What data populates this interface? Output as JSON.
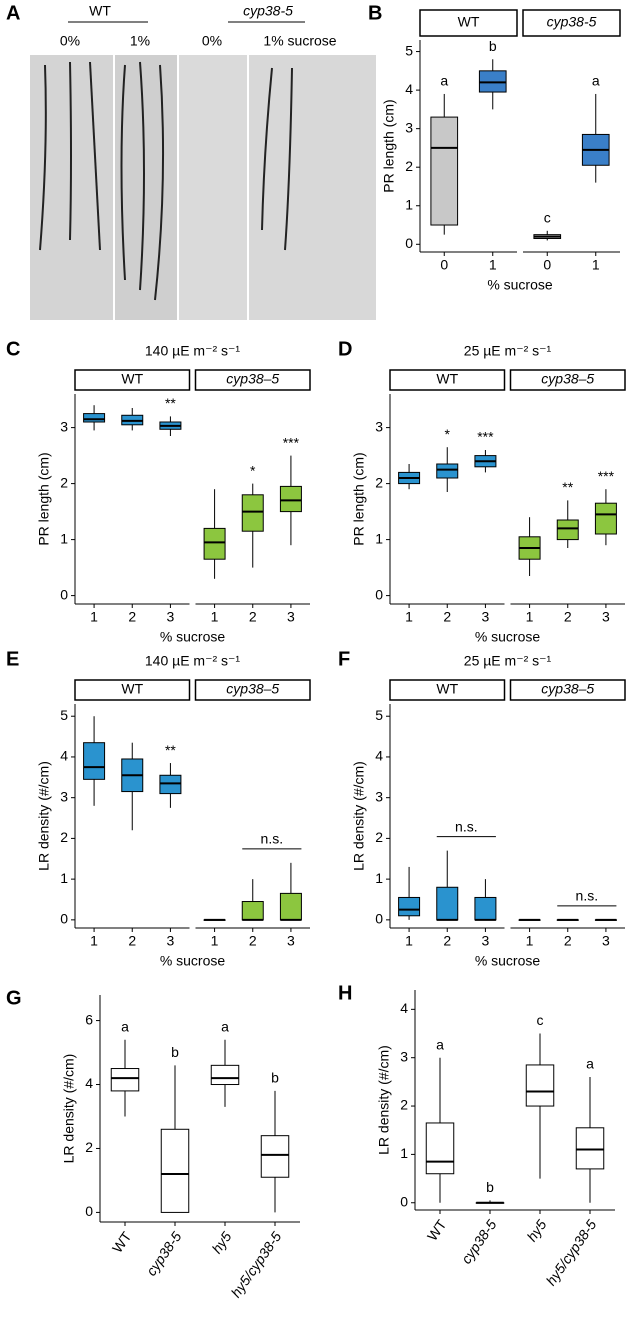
{
  "image_panel": {
    "panel": "A",
    "labels": [
      "WT",
      "0%",
      "1%",
      "cyp38-5",
      "0%",
      "1% sucrose"
    ]
  },
  "chart_data": [
    {
      "type": "box",
      "panel": "B",
      "ylabel": "PR length (cm)",
      "xlabel": "% sucrose",
      "ylim": [
        -0.2,
        5.3
      ],
      "yticks": [
        0,
        1,
        2,
        3,
        4,
        5
      ],
      "label_color": "#000000",
      "facets": [
        {
          "name": "WT",
          "italic": false,
          "categories": [
            "0",
            "1"
          ],
          "colors": [
            "#c8c8c8",
            "#3a7fc8"
          ],
          "labels": [
            "a",
            "b"
          ],
          "boxes": [
            {
              "min": 0.25,
              "q1": 0.5,
              "median": 2.5,
              "q3": 3.3,
              "max": 3.9
            },
            {
              "min": 3.5,
              "q1": 3.95,
              "median": 4.2,
              "q3": 4.5,
              "max": 4.8
            }
          ]
        },
        {
          "name": "cyp38-5",
          "italic": true,
          "categories": [
            "0",
            "1"
          ],
          "colors": [
            "#c8c8c8",
            "#3a7fc8"
          ],
          "labels": [
            "c",
            "a"
          ],
          "boxes": [
            {
              "min": 0.1,
              "q1": 0.15,
              "median": 0.2,
              "q3": 0.25,
              "max": 0.35
            },
            {
              "min": 1.6,
              "q1": 2.05,
              "median": 2.45,
              "q3": 2.85,
              "max": 3.9
            }
          ]
        }
      ]
    },
    {
      "type": "box",
      "panel": "C",
      "title": "140 µE m⁻² s⁻¹",
      "ylabel": "PR length (cm)",
      "xlabel": "% sucrose",
      "ylim": [
        -0.15,
        3.6
      ],
      "yticks": [
        0,
        1,
        2,
        3
      ],
      "label_color": "#e8262a",
      "facets": [
        {
          "name": "WT",
          "italic": false,
          "categories": [
            "1",
            "2",
            "3"
          ],
          "colors": [
            "#2a93cf",
            "#2a93cf",
            "#2a93cf"
          ],
          "labels": [
            null,
            null,
            "**"
          ],
          "boxes": [
            {
              "min": 2.95,
              "q1": 3.1,
              "median": 3.15,
              "q3": 3.25,
              "max": 3.4
            },
            {
              "min": 2.95,
              "q1": 3.05,
              "median": 3.12,
              "q3": 3.22,
              "max": 3.35
            },
            {
              "min": 2.85,
              "q1": 2.97,
              "median": 3.03,
              "q3": 3.1,
              "max": 3.2
            }
          ]
        },
        {
          "name": "cyp38–5",
          "italic": true,
          "categories": [
            "1",
            "2",
            "3"
          ],
          "colors": [
            "#8cc63f",
            "#8cc63f",
            "#8cc63f"
          ],
          "labels": [
            null,
            "*",
            "***"
          ],
          "boxes": [
            {
              "min": 0.3,
              "q1": 0.65,
              "median": 0.95,
              "q3": 1.2,
              "max": 1.9
            },
            {
              "min": 0.5,
              "q1": 1.15,
              "median": 1.5,
              "q3": 1.8,
              "max": 2.0
            },
            {
              "min": 0.9,
              "q1": 1.5,
              "median": 1.7,
              "q3": 1.95,
              "max": 2.5
            }
          ]
        }
      ]
    },
    {
      "type": "box",
      "panel": "D",
      "title": "25 µE m⁻² s⁻¹",
      "ylabel": "PR length (cm)",
      "xlabel": "% sucrose",
      "ylim": [
        -0.15,
        3.6
      ],
      "yticks": [
        0,
        1,
        2,
        3
      ],
      "label_color": "#e8262a",
      "facets": [
        {
          "name": "WT",
          "italic": false,
          "categories": [
            "1",
            "2",
            "3"
          ],
          "colors": [
            "#2a93cf",
            "#2a93cf",
            "#2a93cf"
          ],
          "labels": [
            null,
            "*",
            "***"
          ],
          "boxes": [
            {
              "min": 1.9,
              "q1": 2.0,
              "median": 2.1,
              "q3": 2.2,
              "max": 2.35
            },
            {
              "min": 1.85,
              "q1": 2.1,
              "median": 2.25,
              "q3": 2.35,
              "max": 2.65
            },
            {
              "min": 2.2,
              "q1": 2.3,
              "median": 2.4,
              "q3": 2.5,
              "max": 2.6
            }
          ]
        },
        {
          "name": "cyp38–5",
          "italic": true,
          "categories": [
            "1",
            "2",
            "3"
          ],
          "colors": [
            "#8cc63f",
            "#8cc63f",
            "#8cc63f"
          ],
          "labels": [
            null,
            "**",
            "***"
          ],
          "boxes": [
            {
              "min": 0.35,
              "q1": 0.65,
              "median": 0.85,
              "q3": 1.05,
              "max": 1.4
            },
            {
              "min": 0.85,
              "q1": 1.0,
              "median": 1.2,
              "q3": 1.35,
              "max": 1.7
            },
            {
              "min": 0.9,
              "q1": 1.1,
              "median": 1.45,
              "q3": 1.65,
              "max": 1.9
            }
          ]
        }
      ]
    },
    {
      "type": "box",
      "panel": "E",
      "title": "140 µE m⁻² s⁻¹",
      "ylabel": "LR density (#/cm)",
      "xlabel": "% sucrose",
      "ylim": [
        -0.2,
        5.3
      ],
      "yticks": [
        0,
        1,
        2,
        3,
        4,
        5
      ],
      "label_color": "#e8262a",
      "facets": [
        {
          "name": "WT",
          "italic": false,
          "categories": [
            "1",
            "2",
            "3"
          ],
          "colors": [
            "#2a93cf",
            "#2a93cf",
            "#2a93cf"
          ],
          "labels": [
            null,
            null,
            "**"
          ],
          "boxes": [
            {
              "min": 2.8,
              "q1": 3.45,
              "median": 3.75,
              "q3": 4.35,
              "max": 5.0
            },
            {
              "min": 2.2,
              "q1": 3.15,
              "median": 3.55,
              "q3": 3.95,
              "max": 4.35
            },
            {
              "min": 2.75,
              "q1": 3.1,
              "median": 3.35,
              "q3": 3.55,
              "max": 3.85
            }
          ]
        },
        {
          "name": "cyp38–5",
          "italic": true,
          "categories": [
            "1",
            "2",
            "3"
          ],
          "colors": [
            "#8cc63f",
            "#8cc63f",
            "#8cc63f"
          ],
          "comparison_label": "n.s.",
          "boxes": [
            {
              "min": 0,
              "q1": 0,
              "median": 0,
              "q3": 0,
              "max": 0
            },
            {
              "min": 0,
              "q1": 0,
              "median": 0,
              "q3": 0.45,
              "max": 1.0
            },
            {
              "min": 0,
              "q1": 0,
              "median": 0,
              "q3": 0.65,
              "max": 1.4
            }
          ]
        }
      ]
    },
    {
      "type": "box",
      "panel": "F",
      "title": "25 µE m⁻² s⁻¹",
      "ylabel": "LR density (#/cm)",
      "xlabel": "% sucrose",
      "ylim": [
        -0.2,
        5.3
      ],
      "yticks": [
        0,
        1,
        2,
        3,
        4,
        5
      ],
      "label_color": "#000000",
      "facets": [
        {
          "name": "WT",
          "italic": false,
          "categories": [
            "1",
            "2",
            "3"
          ],
          "colors": [
            "#2a93cf",
            "#2a93cf",
            "#2a93cf"
          ],
          "comparison_label": "n.s.",
          "boxes": [
            {
              "min": 0,
              "q1": 0.1,
              "median": 0.25,
              "q3": 0.55,
              "max": 1.3
            },
            {
              "min": 0,
              "q1": 0,
              "median": 0,
              "q3": 0.8,
              "max": 1.7
            },
            {
              "min": 0,
              "q1": 0,
              "median": 0,
              "q3": 0.55,
              "max": 1.0
            }
          ]
        },
        {
          "name": "cyp38–5",
          "italic": true,
          "categories": [
            "1",
            "2",
            "3"
          ],
          "colors": [
            "#8cc63f",
            "#8cc63f",
            "#8cc63f"
          ],
          "comparison_label": "n.s.",
          "boxes": [
            {
              "min": 0,
              "q1": 0,
              "median": 0,
              "q3": 0,
              "max": 0
            },
            {
              "min": 0,
              "q1": 0,
              "median": 0,
              "q3": 0,
              "max": 0
            },
            {
              "min": 0,
              "q1": 0,
              "median": 0,
              "q3": 0,
              "max": 0
            }
          ]
        }
      ]
    },
    {
      "type": "box",
      "panel": "G",
      "ylabel": "LR density (#/cm)",
      "ylim": [
        -0.3,
        6.8
      ],
      "yticks": [
        0,
        2,
        4,
        6
      ],
      "label_color": "#000000",
      "categories": [
        "WT",
        "cyp38-5",
        "hy5",
        "hy5/cyp38-5"
      ],
      "category_italic": [
        false,
        true,
        true,
        true
      ],
      "colors": [
        "#ffffff",
        "#ffffff",
        "#ffffff",
        "#ffffff"
      ],
      "labels": [
        "a",
        "b",
        "a",
        "b"
      ],
      "boxes": [
        {
          "min": 3.0,
          "q1": 3.8,
          "median": 4.2,
          "q3": 4.5,
          "max": 5.4
        },
        {
          "min": 0,
          "q1": 0,
          "median": 1.2,
          "q3": 2.6,
          "max": 4.6
        },
        {
          "min": 3.3,
          "q1": 4.0,
          "median": 4.2,
          "q3": 4.6,
          "max": 5.4
        },
        {
          "min": 0,
          "q1": 1.1,
          "median": 1.8,
          "q3": 2.4,
          "max": 3.8
        }
      ]
    },
    {
      "type": "box",
      "panel": "H",
      "ylabel": "LR density (#/cm)",
      "ylim": [
        -0.15,
        4.4
      ],
      "yticks": [
        0,
        1,
        2,
        3,
        4
      ],
      "label_color": "#000000",
      "categories": [
        "WT",
        "cyp38-5",
        "hy5",
        "hy5/cyp38-5"
      ],
      "category_italic": [
        false,
        true,
        true,
        true
      ],
      "colors": [
        "#ffffff",
        "#ffffff",
        "#ffffff",
        "#ffffff"
      ],
      "labels": [
        "a",
        "b",
        "c",
        "a"
      ],
      "boxes": [
        {
          "min": 0,
          "q1": 0.6,
          "median": 0.85,
          "q3": 1.65,
          "max": 3.0
        },
        {
          "min": 0,
          "q1": 0,
          "median": 0,
          "q3": 0,
          "max": 0.05
        },
        {
          "min": 0.5,
          "q1": 2.0,
          "median": 2.3,
          "q3": 2.85,
          "max": 3.5
        },
        {
          "min": 0,
          "q1": 0.7,
          "median": 1.1,
          "q3": 1.55,
          "max": 2.6
        }
      ]
    }
  ]
}
